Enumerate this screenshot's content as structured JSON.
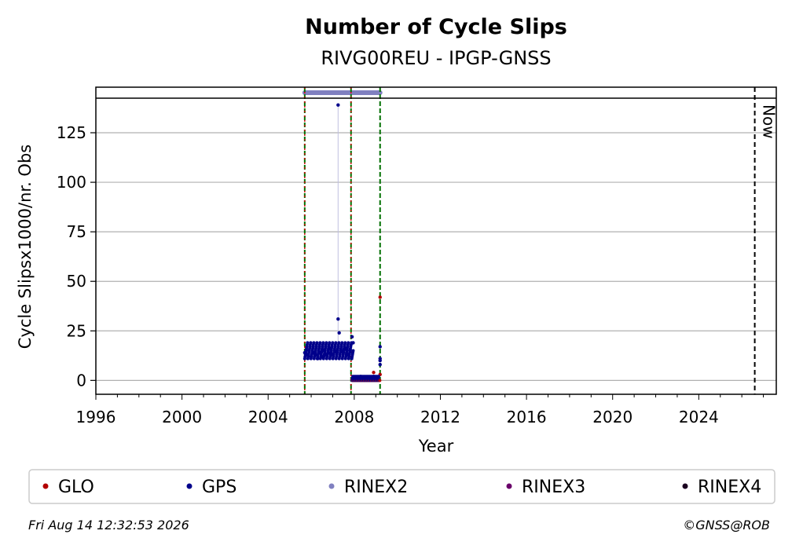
{
  "chart_data": {
    "type": "scatter",
    "title": "Number of Cycle Slips",
    "subtitle": "RIVG00REU - IPGP-GNSS",
    "xlabel": "Year",
    "ylabel": "Cycle Slipsx1000/nr. Obs",
    "xlim": [
      1996,
      2027.6
    ],
    "ylim": [
      -7,
      148
    ],
    "x_ticks": [
      "1996",
      "2000",
      "2004",
      "2008",
      "2012",
      "2016",
      "2020",
      "2024"
    ],
    "y_ticks": [
      "0",
      "25",
      "50",
      "75",
      "100",
      "125"
    ],
    "grid": "horizontal",
    "legend_position": "bottom",
    "now_label": "Now",
    "now_year": 2026.6,
    "event_lines": [
      2005.7,
      2007.85,
      2009.2
    ],
    "rinex2_coverage": [
      2005.7,
      2009.2
    ],
    "series": [
      {
        "name": "GLO",
        "color": "#b30000",
        "x": [
          2007.9,
          2008.05,
          2008.2,
          2008.35,
          2008.5,
          2008.65,
          2008.8,
          2008.9,
          2009.0,
          2009.1,
          2009.2,
          2009.2
        ],
        "y": [
          0.5,
          1,
          0.5,
          1,
          0.5,
          1,
          1.5,
          4,
          1,
          1.5,
          3,
          42
        ]
      },
      {
        "name": "GPS",
        "color": "#00008b",
        "x": [
          2005.7,
          2005.8,
          2005.9,
          2006.0,
          2006.1,
          2006.2,
          2006.3,
          2006.4,
          2006.5,
          2006.6,
          2006.7,
          2006.8,
          2006.9,
          2007.0,
          2007.1,
          2007.2,
          2007.25,
          2007.25,
          2007.3,
          2007.4,
          2007.5,
          2007.6,
          2007.7,
          2007.8,
          2007.9,
          2007.95,
          2008.1,
          2008.3,
          2008.5,
          2008.7,
          2008.9,
          2009.1,
          2009.2,
          2009.2,
          2009.2,
          2009.2
        ],
        "y": [
          14,
          13,
          15,
          12,
          14,
          13,
          11,
          14,
          12,
          15,
          13,
          14,
          16,
          13,
          15,
          14,
          139,
          31,
          24,
          15,
          14,
          16,
          13,
          15,
          22,
          19,
          1.5,
          2,
          1.5,
          1,
          2,
          1.5,
          17,
          10,
          8,
          11
        ]
      },
      {
        "name": "RINEX2",
        "color": "#8080c0",
        "x": [],
        "y": []
      },
      {
        "name": "RINEX3",
        "color": "#6a006a",
        "x": [],
        "y": []
      },
      {
        "name": "RINEX4",
        "color": "#1a0020",
        "x": [],
        "y": []
      }
    ]
  },
  "footer": {
    "timestamp": "Fri Aug 14 12:32:53 2026",
    "copyright": "©GNSS@ROB"
  }
}
